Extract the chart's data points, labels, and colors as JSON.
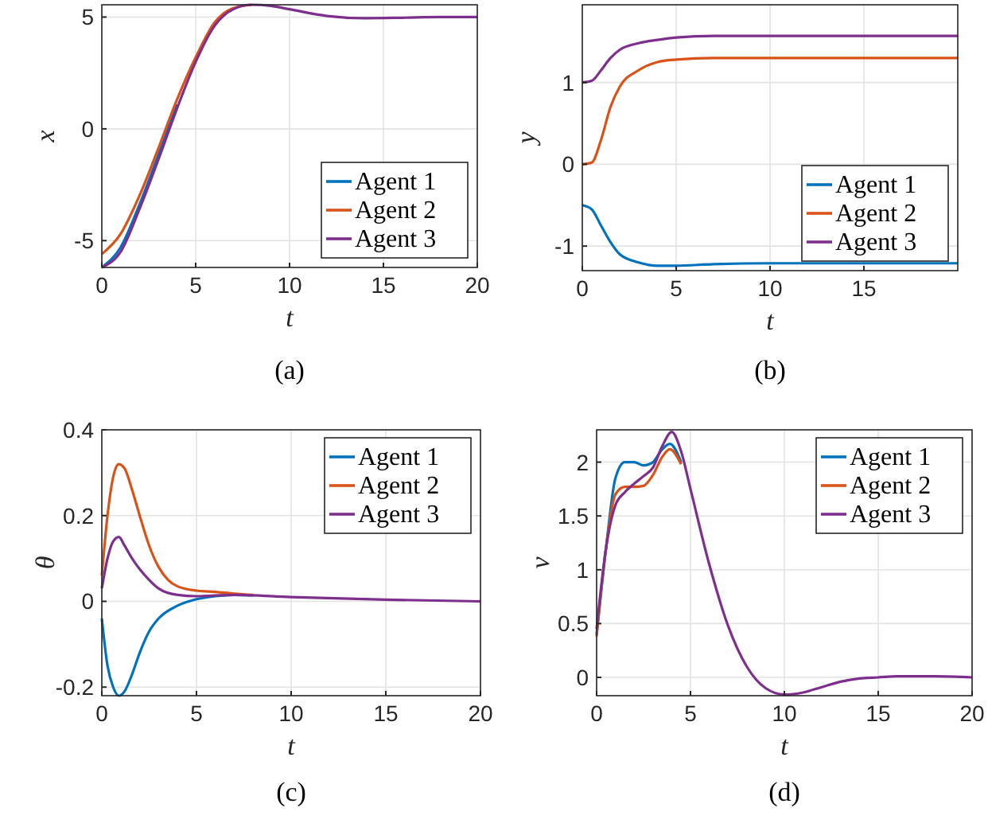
{
  "chart_data": [
    {
      "type": "line",
      "xlabel": "t",
      "ylabel": "x",
      "annotations": [
        "(a)"
      ],
      "xlim": [
        0,
        20
      ],
      "xticks": [
        0,
        5,
        10,
        15,
        20
      ],
      "ylim": [
        -6.2,
        5.55
      ],
      "yticks": [
        -5,
        0,
        5
      ],
      "grid": true,
      "legend": "bottom right",
      "line_style": "solid",
      "marker": "none",
      "series": [
        {
          "name": "Agent 1",
          "color": "#0072bd",
          "x": [
            0,
            1,
            2,
            3,
            4
          ],
          "values": [
            -6.2,
            -5.3,
            -3.4,
            -1.2,
            1.1
          ]
        },
        {
          "name": "Agent 2",
          "color": "#d95319",
          "x": [
            0,
            1,
            2,
            3,
            4,
            5,
            6,
            7,
            8
          ],
          "values": [
            -5.6,
            -4.7,
            -3.0,
            -0.9,
            1.3,
            3.2,
            4.75,
            5.4,
            5.55
          ]
        },
        {
          "name": "Agent 3",
          "color": "#7e2f8e",
          "x": [
            0,
            1,
            2,
            3,
            4,
            5,
            6,
            7,
            8,
            9,
            10,
            12,
            14,
            16,
            18,
            20
          ],
          "values": [
            -6.2,
            -5.5,
            -3.6,
            -1.4,
            0.9,
            3.0,
            4.6,
            5.35,
            5.55,
            5.5,
            5.35,
            5.05,
            4.95,
            4.97,
            5,
            5
          ]
        }
      ]
    },
    {
      "type": "line",
      "xlabel": "t",
      "ylabel": "y",
      "annotations": [
        "(b)"
      ],
      "xlim": [
        0,
        20
      ],
      "xticks": [
        0,
        5,
        10,
        15
      ],
      "ylim": [
        -1.3,
        1.95
      ],
      "yticks": [
        -1,
        0,
        1
      ],
      "grid": true,
      "legend": "bottom right",
      "line_style": "solid",
      "marker": "none",
      "series": [
        {
          "name": "Agent 1",
          "color": "#0072bd",
          "x": [
            0,
            0.5,
            1,
            1.5,
            2,
            3,
            4,
            5,
            7,
            10,
            20
          ],
          "values": [
            -0.5,
            -0.55,
            -0.75,
            -0.95,
            -1.1,
            -1.2,
            -1.24,
            -1.24,
            -1.22,
            -1.21,
            -1.21
          ]
        },
        {
          "name": "Agent 2",
          "color": "#d95319",
          "x": [
            0,
            0.5,
            1,
            1.5,
            2,
            3,
            4,
            5,
            7,
            10,
            20
          ],
          "values": [
            0,
            0.02,
            0.3,
            0.7,
            0.95,
            1.15,
            1.25,
            1.28,
            1.3,
            1.3,
            1.3
          ]
        },
        {
          "name": "Agent 3",
          "color": "#7e2f8e",
          "x": [
            0,
            0.5,
            1,
            1.5,
            2,
            3,
            4,
            5,
            7,
            10,
            20
          ],
          "values": [
            1,
            1.02,
            1.15,
            1.3,
            1.4,
            1.48,
            1.52,
            1.55,
            1.57,
            1.57,
            1.57
          ]
        }
      ]
    },
    {
      "type": "line",
      "xlabel": "t",
      "ylabel": "θ",
      "annotations": [
        "(c)"
      ],
      "xlim": [
        0,
        20
      ],
      "xticks": [
        0,
        5,
        10,
        15,
        20
      ],
      "ylim": [
        -0.22,
        0.4
      ],
      "yticks": [
        -0.2,
        0,
        0.2,
        0.4
      ],
      "grid": true,
      "legend": "top right",
      "line_style": "solid",
      "marker": "none",
      "series": [
        {
          "name": "Agent 1",
          "color": "#0072bd",
          "x": [
            0,
            0.3,
            0.6,
            0.9,
            1.2,
            1.6,
            2,
            2.5,
            3,
            4,
            5,
            6,
            7,
            8
          ],
          "values": [
            -0.04,
            -0.15,
            -0.2,
            -0.22,
            -0.21,
            -0.17,
            -0.12,
            -0.07,
            -0.04,
            -0.01,
            0.005,
            0.012,
            0.015,
            0.014
          ]
        },
        {
          "name": "Agent 2",
          "color": "#d95319",
          "x": [
            0,
            0.3,
            0.6,
            0.9,
            1.2,
            1.6,
            2,
            2.5,
            3,
            3.5,
            4,
            5,
            6,
            7,
            8
          ],
          "values": [
            0.06,
            0.2,
            0.29,
            0.32,
            0.31,
            0.26,
            0.2,
            0.13,
            0.08,
            0.05,
            0.035,
            0.025,
            0.022,
            0.018,
            0.015
          ]
        },
        {
          "name": "Agent 3",
          "color": "#7e2f8e",
          "x": [
            0,
            0.3,
            0.6,
            0.9,
            1.2,
            1.6,
            2,
            2.5,
            3,
            4,
            5,
            7,
            10,
            15,
            20
          ],
          "values": [
            0.03,
            0.1,
            0.14,
            0.15,
            0.13,
            0.1,
            0.075,
            0.05,
            0.03,
            0.015,
            0.012,
            0.015,
            0.01,
            0.004,
            0
          ]
        }
      ]
    },
    {
      "type": "line",
      "xlabel": "t",
      "ylabel": "v",
      "annotations": [
        "(d)"
      ],
      "xlim": [
        0,
        20
      ],
      "xticks": [
        0,
        5,
        10,
        15,
        20
      ],
      "ylim": [
        -0.17,
        2.3
      ],
      "yticks": [
        0,
        0.5,
        1,
        1.5,
        2
      ],
      "grid": true,
      "legend": "top right",
      "line_style": "solid",
      "marker": "none",
      "series": [
        {
          "name": "Agent 1",
          "color": "#0072bd",
          "x": [
            0,
            0.5,
            1,
            1.5,
            2,
            2.5,
            3,
            3.5,
            3.9,
            4.5
          ],
          "values": [
            0.4,
            1.2,
            1.85,
            2.0,
            2.0,
            1.97,
            2.0,
            2.12,
            2.17,
            2.0
          ]
        },
        {
          "name": "Agent 2",
          "color": "#d95319",
          "x": [
            0,
            0.5,
            1,
            1.5,
            2,
            2.5,
            3,
            3.5,
            3.9,
            4.5
          ],
          "values": [
            0.38,
            1.2,
            1.7,
            1.77,
            1.77,
            1.78,
            1.88,
            2.05,
            2.12,
            1.98
          ]
        },
        {
          "name": "Agent 3",
          "color": "#7e2f8e",
          "x": [
            0,
            0.5,
            1,
            1.5,
            2,
            2.5,
            3,
            3.5,
            4,
            4.5,
            5,
            6,
            7,
            8,
            9,
            10,
            11,
            12,
            13,
            14,
            15,
            16,
            18,
            20
          ],
          "values": [
            0.45,
            1.2,
            1.6,
            1.72,
            1.8,
            1.87,
            1.95,
            2.15,
            2.28,
            2.1,
            1.75,
            1.05,
            0.48,
            0.1,
            -0.1,
            -0.16,
            -0.14,
            -0.09,
            -0.04,
            -0.01,
            0,
            0.01,
            0.01,
            0
          ]
        }
      ]
    }
  ]
}
